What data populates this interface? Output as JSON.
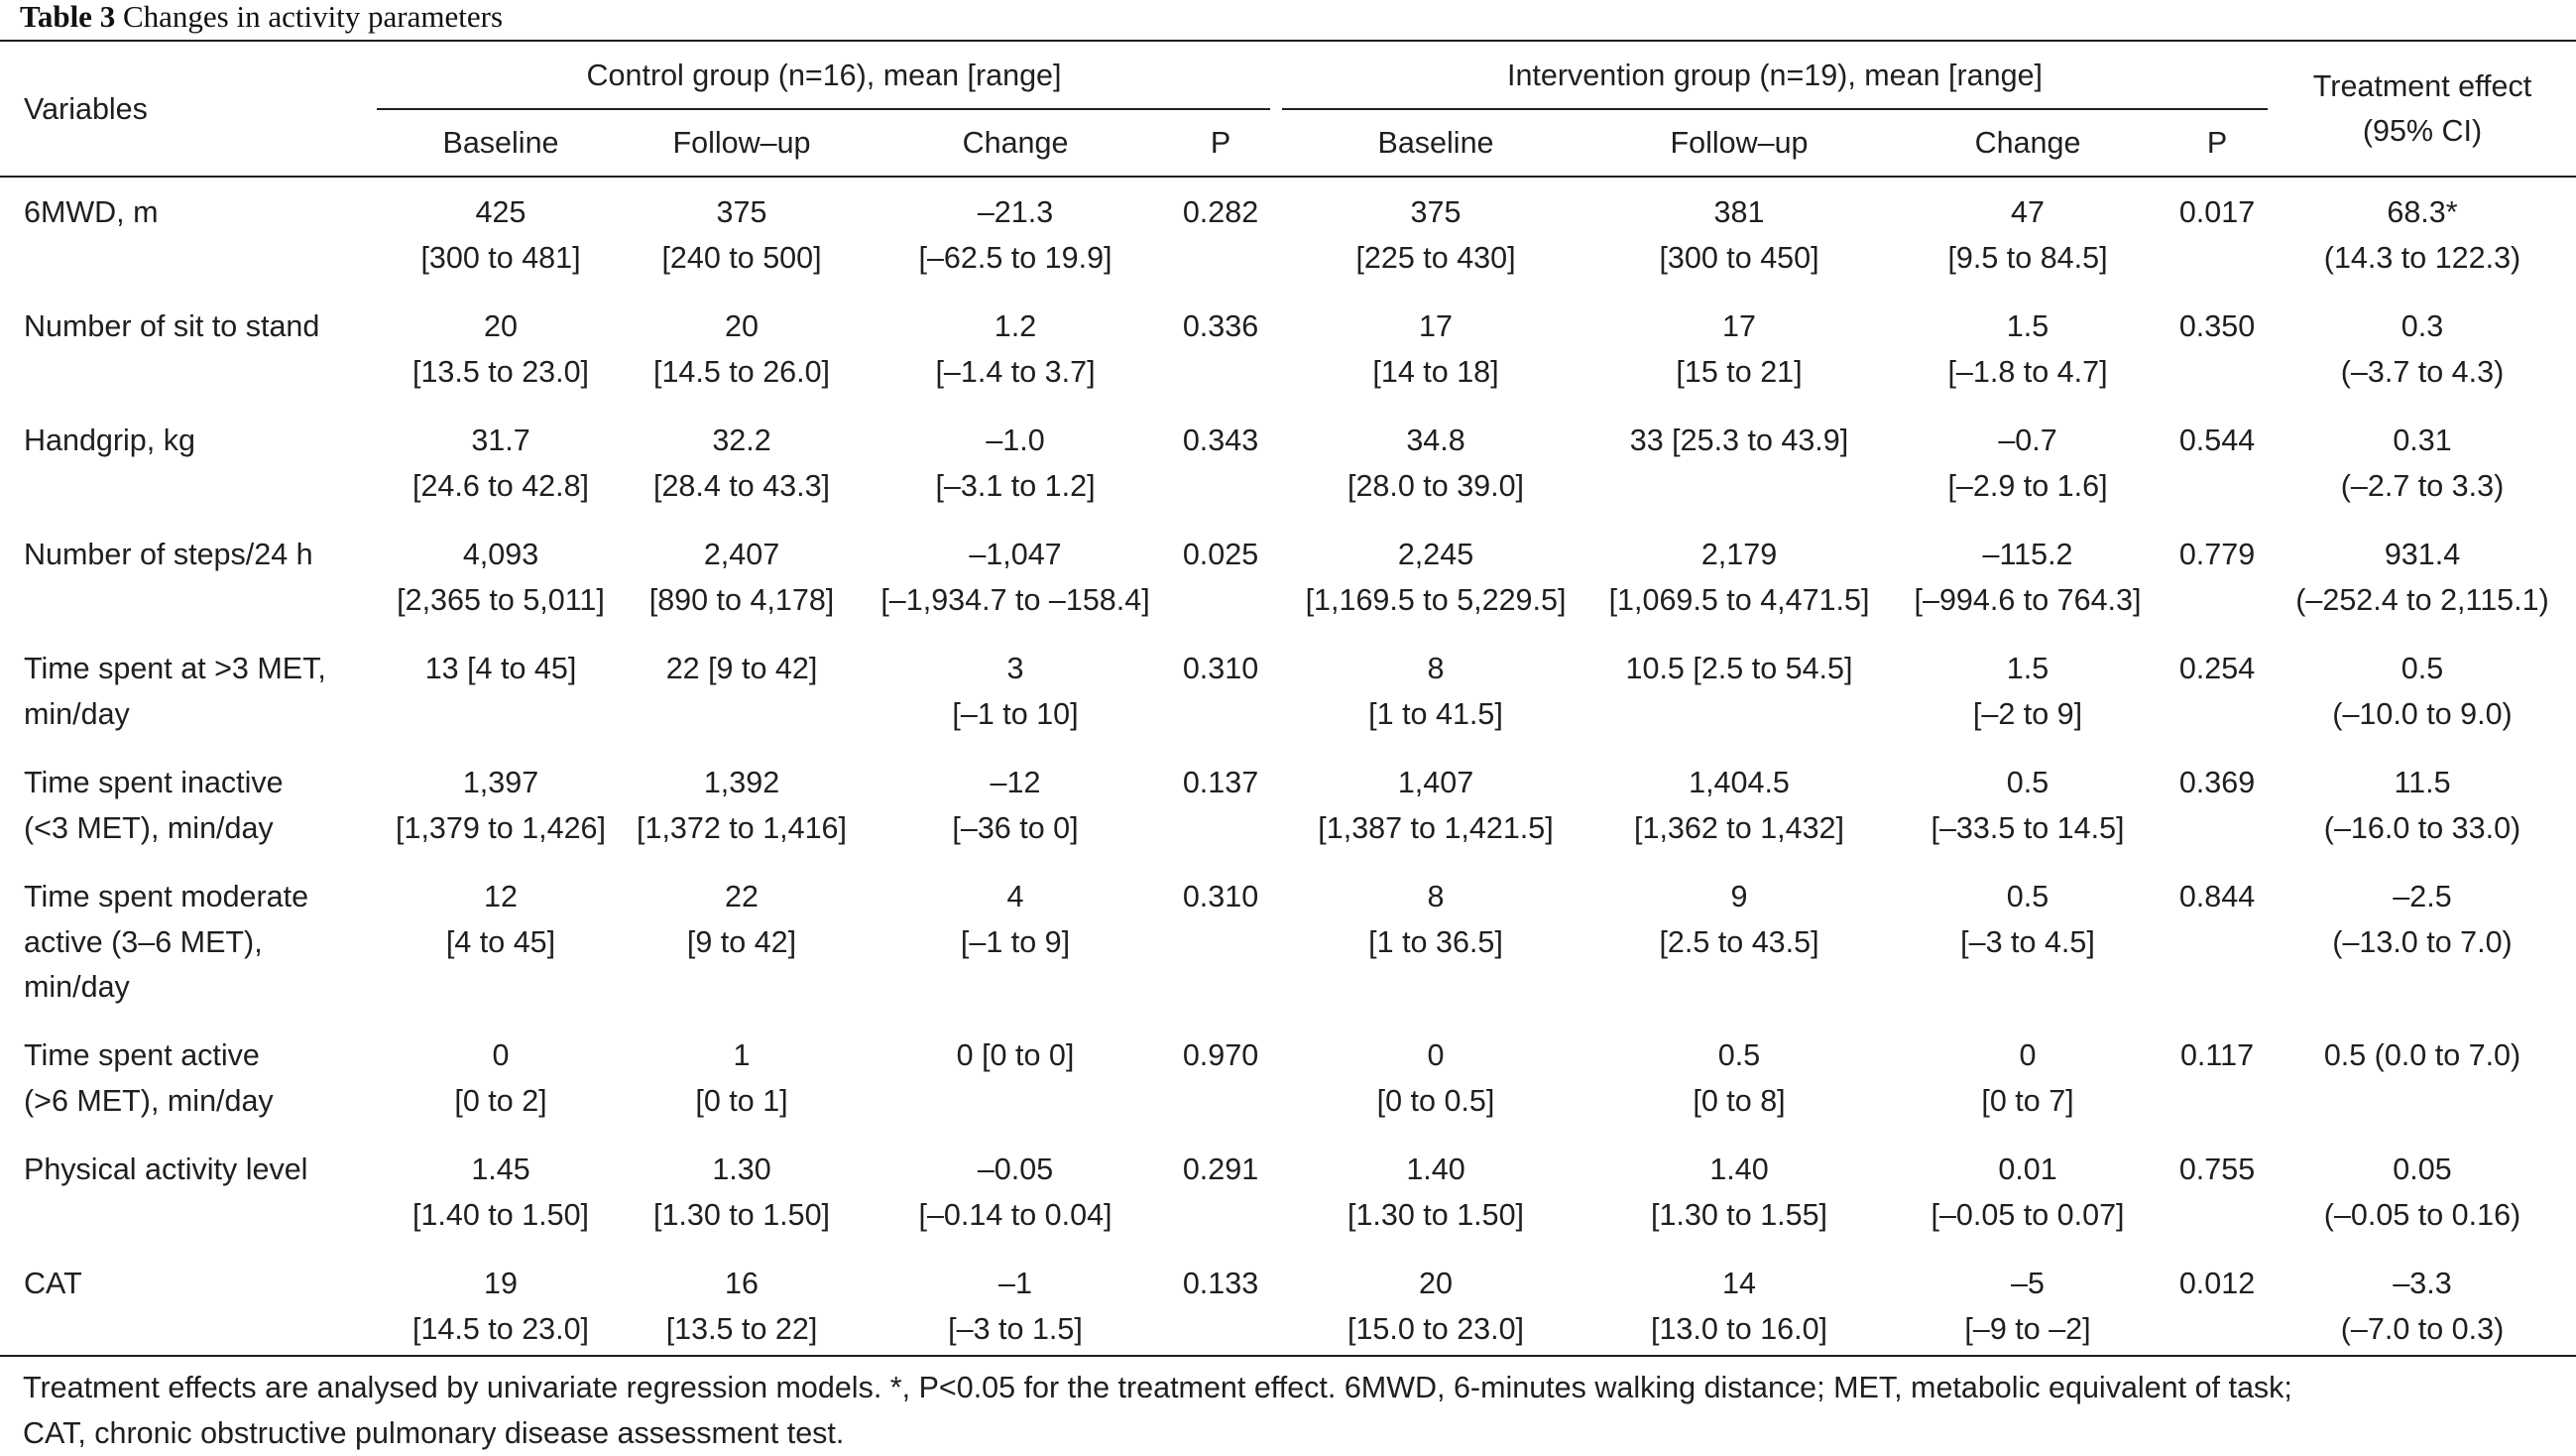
{
  "caption": {
    "label": "Table 3",
    "text": "Changes in activity parameters"
  },
  "header": {
    "variables": "Variables",
    "control_group": "Control group (n=16), mean [range]",
    "intervention_group": "Intervention group (n=19), mean [range]",
    "treatment_effect_line1": "Treatment effect",
    "treatment_effect_line2": "(95% CI)",
    "sub": [
      "Baseline",
      "Follow–up",
      "Change",
      "P",
      "Baseline",
      "Follow–up",
      "Change",
      "P"
    ]
  },
  "rows": [
    {
      "var": [
        "6MWD, m"
      ],
      "cells": [
        [
          "425",
          "[300 to 481]"
        ],
        [
          "375",
          "[240 to 500]"
        ],
        [
          "–21.3",
          "[–62.5 to 19.9]"
        ],
        [
          "0.282"
        ],
        [
          "375",
          "[225 to 430]"
        ],
        [
          "381",
          "[300 to 450]"
        ],
        [
          "47",
          "[9.5 to 84.5]"
        ],
        [
          "0.017"
        ],
        [
          "68.3*",
          "(14.3 to 122.3)"
        ]
      ]
    },
    {
      "var": [
        "Number of sit to stand"
      ],
      "cells": [
        [
          "20",
          "[13.5 to 23.0]"
        ],
        [
          "20",
          "[14.5 to 26.0]"
        ],
        [
          "1.2",
          "[–1.4 to 3.7]"
        ],
        [
          "0.336"
        ],
        [
          "17",
          "[14 to 18]"
        ],
        [
          "17",
          "[15 to 21]"
        ],
        [
          "1.5",
          "[–1.8 to 4.7]"
        ],
        [
          "0.350"
        ],
        [
          "0.3",
          "(–3.7 to 4.3)"
        ]
      ]
    },
    {
      "var": [
        "Handgrip, kg"
      ],
      "cells": [
        [
          "31.7",
          "[24.6 to 42.8]"
        ],
        [
          "32.2",
          "[28.4 to 43.3]"
        ],
        [
          "–1.0",
          "[–3.1 to 1.2]"
        ],
        [
          "0.343"
        ],
        [
          "34.8",
          "[28.0 to 39.0]"
        ],
        [
          "33 [25.3 to 43.9]"
        ],
        [
          "–0.7",
          "[–2.9 to 1.6]"
        ],
        [
          "0.544"
        ],
        [
          "0.31",
          "(–2.7 to 3.3)"
        ]
      ]
    },
    {
      "var": [
        "Number of steps/24 h"
      ],
      "cells": [
        [
          "4,093",
          "[2,365 to 5,011]"
        ],
        [
          "2,407",
          "[890 to 4,178]"
        ],
        [
          "–1,047",
          "[–1,934.7 to –158.4]"
        ],
        [
          "0.025"
        ],
        [
          "2,245",
          "[1,169.5 to 5,229.5]"
        ],
        [
          "2,179",
          "[1,069.5 to 4,471.5]"
        ],
        [
          "–115.2",
          "[–994.6 to 764.3]"
        ],
        [
          "0.779"
        ],
        [
          "931.4",
          "(–252.4 to 2,115.1)"
        ]
      ]
    },
    {
      "var": [
        "Time spent at >3 MET,",
        "min/day"
      ],
      "cells": [
        [
          "13 [4 to 45]"
        ],
        [
          "22 [9 to 42]"
        ],
        [
          "3",
          "[–1 to 10]"
        ],
        [
          "0.310"
        ],
        [
          "8",
          "[1 to 41.5]"
        ],
        [
          "10.5 [2.5 to 54.5]"
        ],
        [
          "1.5",
          "[–2 to 9]"
        ],
        [
          "0.254"
        ],
        [
          "0.5",
          "(–10.0 to 9.0)"
        ]
      ]
    },
    {
      "var": [
        "Time spent inactive",
        "(<3 MET), min/day"
      ],
      "cells": [
        [
          "1,397",
          "[1,379 to 1,426]"
        ],
        [
          "1,392",
          "[1,372 to 1,416]"
        ],
        [
          "–12",
          "[–36 to 0]"
        ],
        [
          "0.137"
        ],
        [
          "1,407",
          "[1,387 to 1,421.5]"
        ],
        [
          "1,404.5",
          "[1,362 to 1,432]"
        ],
        [
          "0.5",
          "[–33.5 to 14.5]"
        ],
        [
          "0.369"
        ],
        [
          "11.5",
          "(–16.0 to 33.0)"
        ]
      ]
    },
    {
      "var": [
        "Time spent moderate",
        "active (3–6 MET),",
        "min/day"
      ],
      "cells": [
        [
          "12",
          "[4 to 45]"
        ],
        [
          "22",
          "[9 to 42]"
        ],
        [
          "4",
          "[–1 to 9]"
        ],
        [
          "0.310"
        ],
        [
          "8",
          "[1 to 36.5]"
        ],
        [
          "9",
          "[2.5 to 43.5]"
        ],
        [
          "0.5",
          "[–3 to 4.5]"
        ],
        [
          "0.844"
        ],
        [
          "–2.5",
          "(–13.0 to 7.0)"
        ]
      ]
    },
    {
      "var": [
        "Time spent active",
        "(>6 MET), min/day"
      ],
      "cells": [
        [
          "0",
          "[0 to 2]"
        ],
        [
          "1",
          "[0 to 1]"
        ],
        [
          "0 [0 to 0]"
        ],
        [
          "0.970"
        ],
        [
          "0",
          "[0 to 0.5]"
        ],
        [
          "0.5",
          "[0 to 8]"
        ],
        [
          "0",
          "[0 to 7]"
        ],
        [
          "0.117"
        ],
        [
          "0.5 (0.0 to 7.0)"
        ]
      ]
    },
    {
      "var": [
        "Physical activity level"
      ],
      "cells": [
        [
          "1.45",
          "[1.40 to 1.50]"
        ],
        [
          "1.30",
          "[1.30 to 1.50]"
        ],
        [
          "–0.05",
          "[–0.14 to 0.04]"
        ],
        [
          "0.291"
        ],
        [
          "1.40",
          "[1.30 to 1.50]"
        ],
        [
          "1.40",
          "[1.30 to 1.55]"
        ],
        [
          "0.01",
          "[–0.05 to 0.07]"
        ],
        [
          "0.755"
        ],
        [
          "0.05",
          "(–0.05 to 0.16)"
        ]
      ]
    },
    {
      "var": [
        "CAT"
      ],
      "cells": [
        [
          "19",
          "[14.5 to 23.0]"
        ],
        [
          "16",
          "[13.5 to 22]"
        ],
        [
          "–1",
          "[–3 to 1.5]"
        ],
        [
          "0.133"
        ],
        [
          "20",
          "[15.0 to 23.0]"
        ],
        [
          "14",
          "[13.0 to 16.0]"
        ],
        [
          "–5",
          "[–9 to –2]"
        ],
        [
          "0.012"
        ],
        [
          "–3.3",
          "(–7.0 to 0.3)"
        ]
      ]
    }
  ],
  "footnote": [
    "Treatment effects are analysed by univariate regression models. *, P<0.05 for the treatment effect. 6MWD, 6-minutes walking distance; MET, metabolic equivalent of task;",
    "CAT, chronic obstructive pulmonary disease assessment test."
  ]
}
